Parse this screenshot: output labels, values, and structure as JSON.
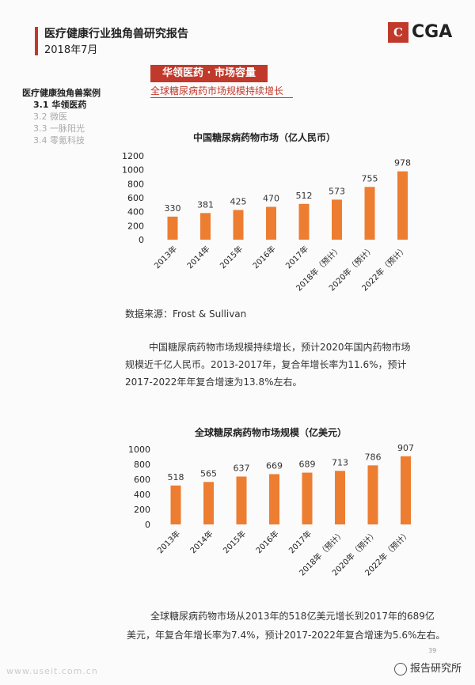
{
  "header": {
    "title": "医疗健康行业独角兽研究报告",
    "date": "2018年7月"
  },
  "logo": {
    "mark": "C",
    "text": "CGA"
  },
  "section": {
    "tag": "华领医药 · 市场容量",
    "subtitle": "全球糖尿病药市场规模持续增长"
  },
  "sidebar": {
    "heading": "医疗健康独角兽案例",
    "items": [
      "3.1 华领医药",
      "3.2 微医",
      "3.3 一脉阳光",
      "3.4 零氪科技"
    ]
  },
  "source": "数据来源：Frost & Sullivan",
  "para1": {
    "line1": "中国糖尿病药物市场规模持续增长，预计2020年国内药物市场",
    "line2": "规模近千亿人民币。2013-2017年，复合年增长率为11.6%，预计",
    "line3": "2017-2022年年复合增速为13.8%左右。"
  },
  "para2": {
    "line1": "全球糖尿病药物市场从2013年的518亿美元增长到2017年的689亿",
    "line2": "美元，年复合年增长率为7.4%，预计2017-2022年复合增速为5.6%左右。"
  },
  "page_number": "39",
  "watermark": "www.useit.com.cn",
  "wechat": "报告研究所",
  "colors": {
    "accent": "#c0392b",
    "bar": "#ed7d31"
  },
  "chart_data": [
    {
      "type": "bar",
      "title": "中国糖尿病药物市场（亿人民币）",
      "categories": [
        "2013年",
        "2014年",
        "2015年",
        "2016年",
        "2017年",
        "2018年（预计）",
        "2020年（预计）",
        "2022年（预计）"
      ],
      "values": [
        330,
        381,
        425,
        470,
        512,
        573,
        755,
        978
      ],
      "ylim": [
        0,
        1200
      ],
      "yticks": [
        0,
        200,
        400,
        600,
        800,
        1000,
        1200
      ]
    },
    {
      "type": "bar",
      "title": "全球糖尿病药物市场规模（亿美元）",
      "categories": [
        "2013年",
        "2014年",
        "2015年",
        "2016年",
        "2017年",
        "2018年（预计）",
        "2020年（预计）",
        "2022年（预计）"
      ],
      "values": [
        518,
        565,
        637,
        669,
        689,
        713,
        786,
        907
      ],
      "ylim": [
        0,
        1000
      ],
      "yticks": [
        0,
        200,
        400,
        600,
        800,
        1000
      ]
    }
  ]
}
